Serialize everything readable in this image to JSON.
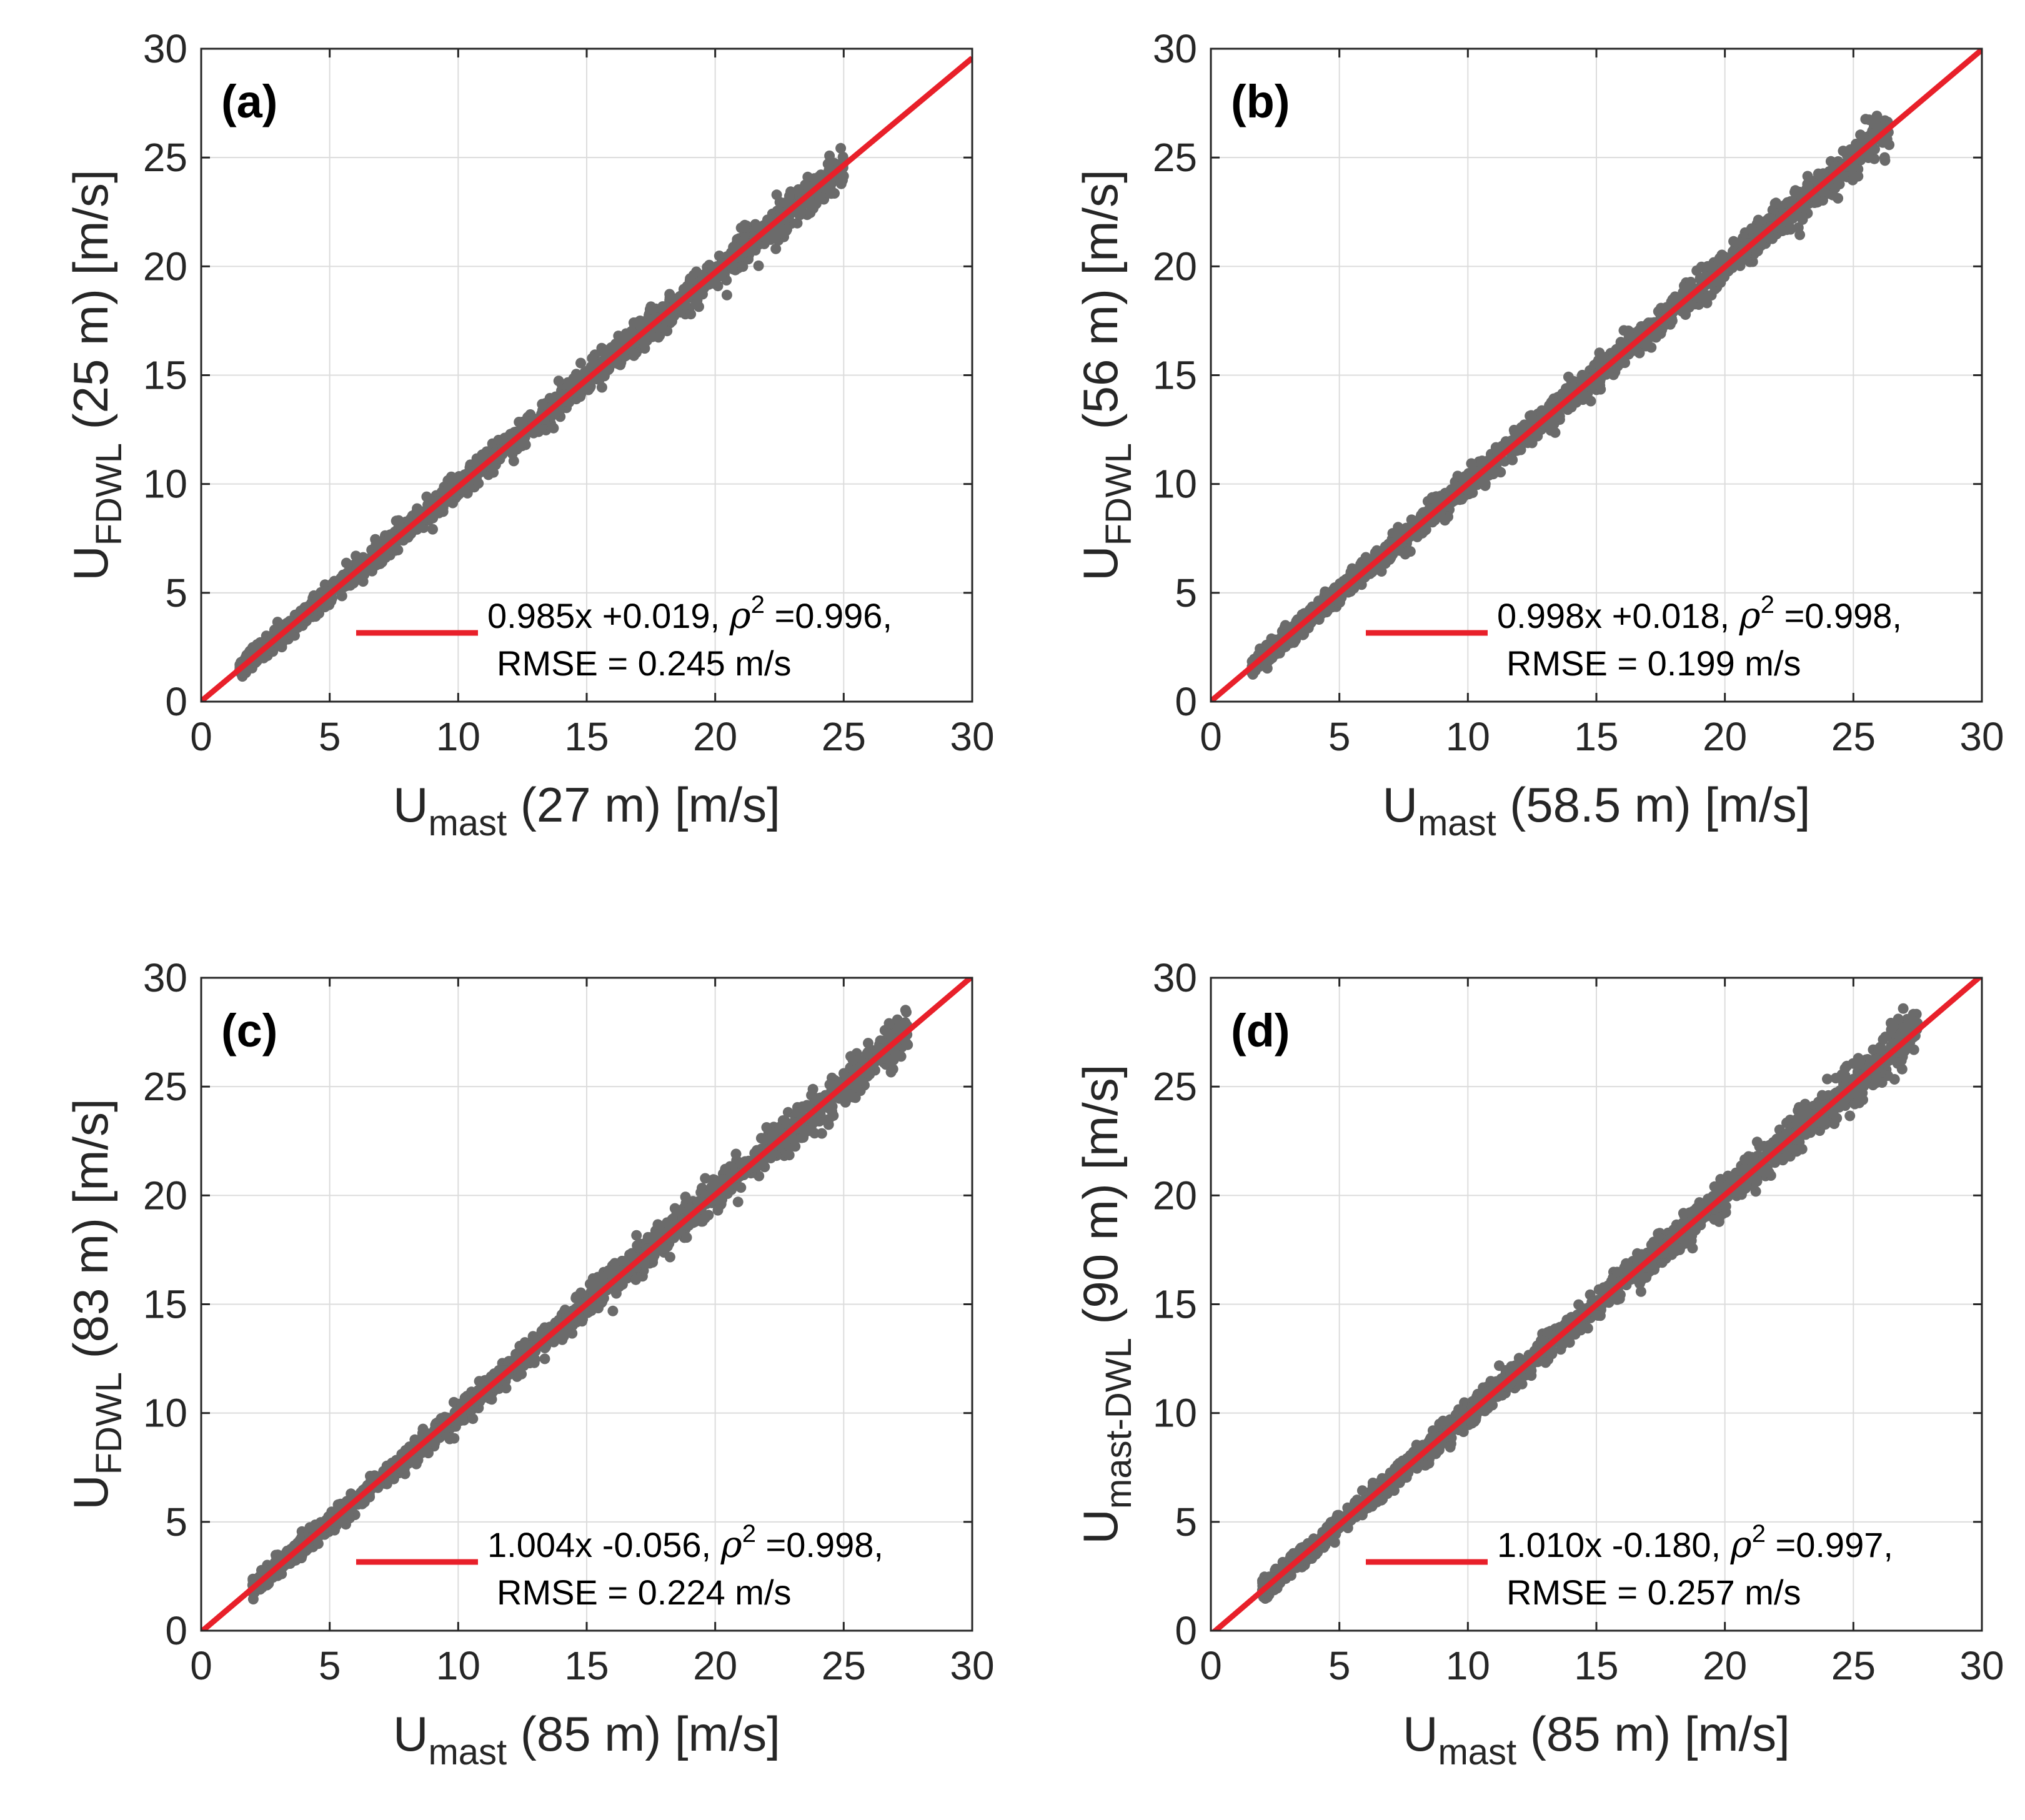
{
  "colors": {
    "scatter": "#6b6b6b",
    "fit_line": "#e8202a",
    "grid": "#dcdcdc",
    "axes": "#262626"
  },
  "chart_data": [
    {
      "type": "scatter",
      "panel_label": "(a)",
      "xlabel": {
        "main": "U",
        "sub": "mast",
        "rest": " (27 m) [m/s]"
      },
      "ylabel": {
        "main": "U",
        "sub": "FDWL",
        "rest": " (25 m) [m/s]"
      },
      "xlim": [
        0,
        30
      ],
      "ylim": [
        0,
        30
      ],
      "xticks": [
        "0",
        "5",
        "10",
        "15",
        "20",
        "25",
        "30"
      ],
      "yticks": [
        "0",
        "5",
        "10",
        "15",
        "20",
        "25",
        "30"
      ],
      "grid": true,
      "points_range": [
        1.5,
        25
      ],
      "fit": {
        "slope": 0.985,
        "intercept": 0.019,
        "x_range": [
          0,
          30
        ]
      },
      "legend": {
        "line1_pre": "0.985x +0.019, ",
        "rho": "ρ",
        "sup": "2",
        "line1_post": " =0.996,",
        "line2": "RMSE = 0.245 m/s",
        "position": "lower-right"
      }
    },
    {
      "type": "scatter",
      "panel_label": "(b)",
      "xlabel": {
        "main": "U",
        "sub": "mast",
        "rest": " (58.5 m) [m/s]"
      },
      "ylabel": {
        "main": "U",
        "sub": "FDWL",
        "rest": " (56 m) [m/s]"
      },
      "xlim": [
        0,
        30
      ],
      "ylim": [
        0,
        30
      ],
      "xticks": [
        "0",
        "5",
        "10",
        "15",
        "20",
        "25",
        "30"
      ],
      "yticks": [
        "0",
        "5",
        "10",
        "15",
        "20",
        "25",
        "30"
      ],
      "grid": true,
      "points_range": [
        1.6,
        26.4
      ],
      "fit": {
        "slope": 0.998,
        "intercept": 0.018,
        "x_range": [
          0,
          30
        ]
      },
      "legend": {
        "line1_pre": "0.998x +0.018, ",
        "rho": "ρ",
        "sup": "2",
        "line1_post": " =0.998,",
        "line2": "RMSE = 0.199 m/s",
        "position": "lower-right"
      }
    },
    {
      "type": "scatter",
      "panel_label": "(c)",
      "xlabel": {
        "main": "U",
        "sub": "mast",
        "rest": " (85 m) [m/s]"
      },
      "ylabel": {
        "main": "U",
        "sub": "FDWL",
        "rest": " (83 m) [m/s]"
      },
      "xlim": [
        0,
        30
      ],
      "ylim": [
        0,
        30
      ],
      "xticks": [
        "0",
        "5",
        "10",
        "15",
        "20",
        "25",
        "30"
      ],
      "yticks": [
        "0",
        "5",
        "10",
        "15",
        "20",
        "25",
        "30"
      ],
      "grid": true,
      "points_range": [
        2.0,
        27.5
      ],
      "fit": {
        "slope": 1.004,
        "intercept": -0.056,
        "x_range": [
          0,
          30
        ]
      },
      "legend": {
        "line1_pre": "1.004x -0.056, ",
        "rho": "ρ",
        "sup": "2",
        "line1_post": " =0.998,",
        "line2": "RMSE = 0.224 m/s",
        "position": "lower-right"
      }
    },
    {
      "type": "scatter",
      "panel_label": "(d)",
      "xlabel": {
        "main": "U",
        "sub": "mast",
        "rest": " (85 m) [m/s]"
      },
      "ylabel": {
        "main": "U",
        "sub": "mast-DWL",
        "rest": " (90 m) [m/s]"
      },
      "xlim": [
        0,
        30
      ],
      "ylim": [
        0,
        30
      ],
      "xticks": [
        "0",
        "5",
        "10",
        "15",
        "20",
        "25",
        "30"
      ],
      "yticks": [
        "0",
        "5",
        "10",
        "15",
        "20",
        "25",
        "30"
      ],
      "grid": true,
      "points_range": [
        2.0,
        27.5
      ],
      "fit": {
        "slope": 1.01,
        "intercept": -0.18,
        "x_range": [
          0,
          30
        ]
      },
      "legend": {
        "line1_pre": "1.010x -0.180, ",
        "rho": "ρ",
        "sup": "2",
        "line1_post": " =0.997,",
        "line2": "RMSE = 0.257 m/s",
        "position": "lower-right"
      }
    }
  ]
}
